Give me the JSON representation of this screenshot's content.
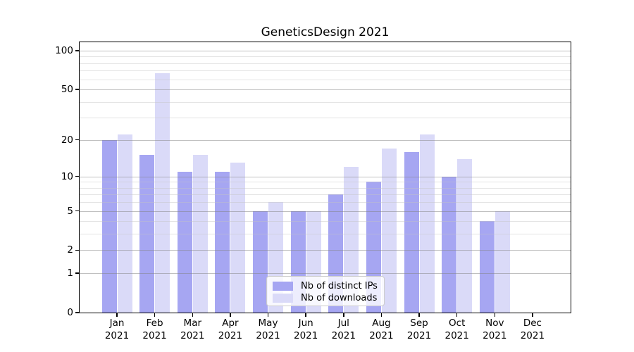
{
  "chart_data": {
    "type": "bar",
    "title": "GeneticsDesign 2021",
    "categories": [
      "Jan",
      "Feb",
      "Mar",
      "Apr",
      "May",
      "Jun",
      "Jul",
      "Aug",
      "Sep",
      "Oct",
      "Nov",
      "Dec"
    ],
    "year_label": "2021",
    "series": [
      {
        "name": "Nb of distinct IPs",
        "color": "#a6a6f2",
        "values": [
          20,
          15,
          11,
          11,
          5,
          5,
          7,
          9,
          16,
          10,
          4,
          0
        ]
      },
      {
        "name": "Nb of downloads",
        "color": "#dadaf8",
        "values": [
          22,
          67,
          15,
          13,
          6,
          5,
          12,
          17,
          22,
          14,
          5,
          0
        ]
      }
    ],
    "xlabel": "",
    "ylabel": "",
    "y_scale": "log1p",
    "ylim": [
      0,
      115
    ],
    "y_major_ticks": [
      0,
      1,
      2,
      5,
      10,
      20,
      50,
      100
    ],
    "y_minor_ticks": [
      3,
      4,
      6,
      7,
      8,
      9,
      30,
      40,
      60,
      70,
      80,
      90
    ],
    "grid": "horizontal",
    "legend": {
      "position": "lower-center",
      "entries": [
        "Nb of distinct IPs",
        "Nb of downloads"
      ]
    }
  }
}
